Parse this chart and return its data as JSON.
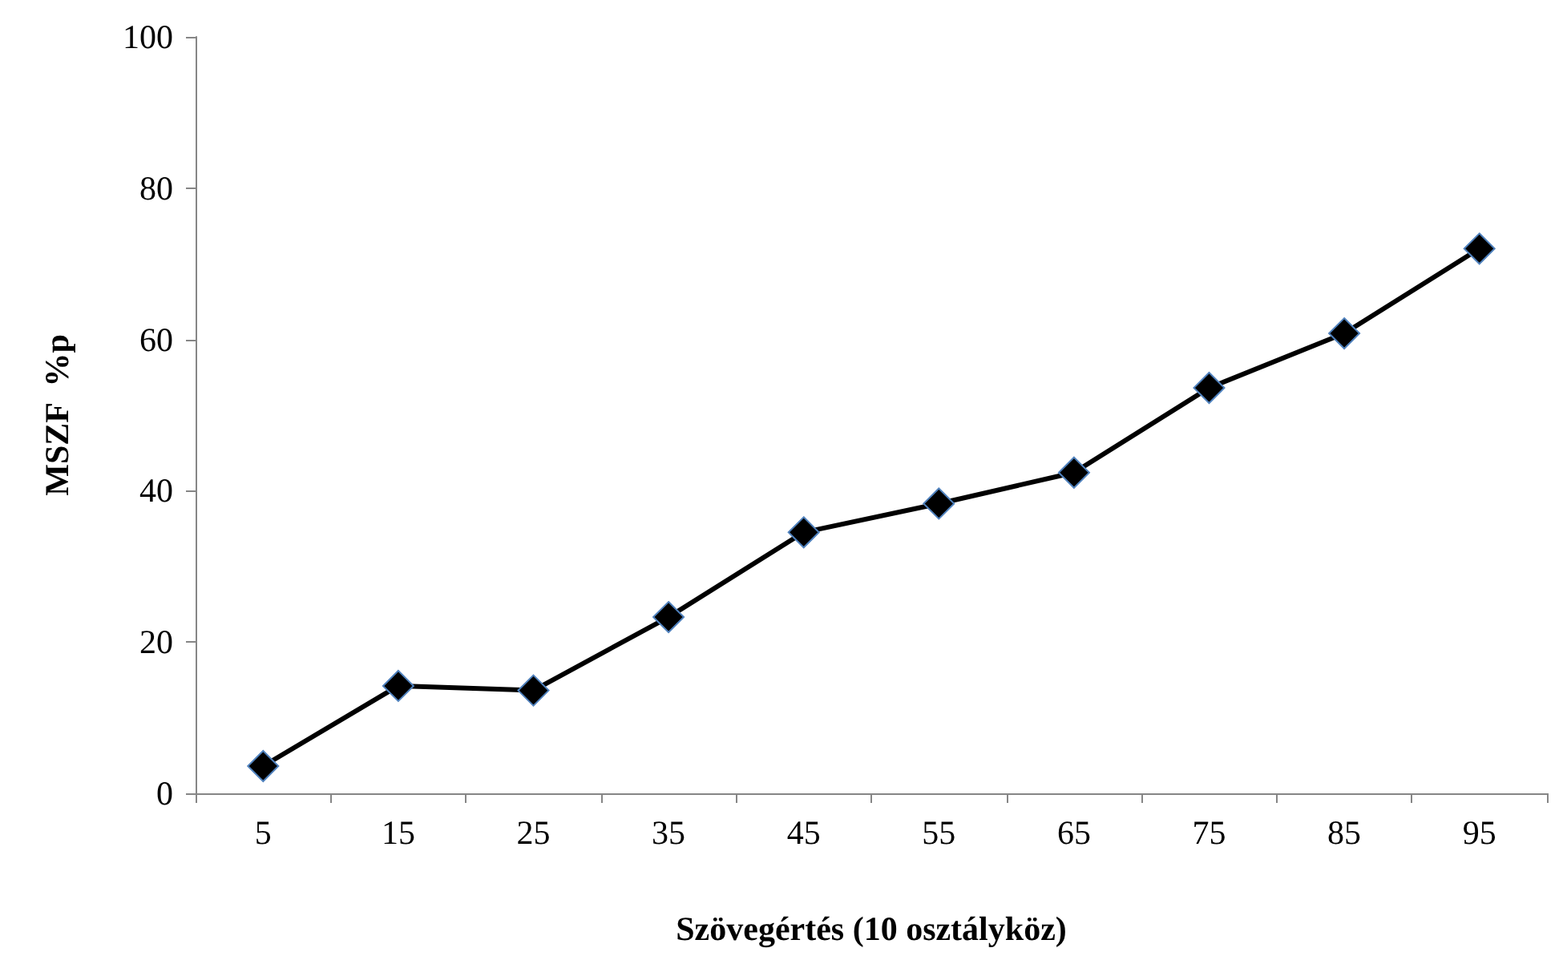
{
  "chart_data": {
    "type": "line",
    "xlabel": "Szövegértés (10 osztályköz)",
    "ylabel": "MSZF  %p",
    "categories": [
      "5",
      "15",
      "25",
      "35",
      "45",
      "55",
      "65",
      "75",
      "85",
      "95"
    ],
    "series": [
      {
        "color": "#000000",
        "values": [
          3.6,
          14.2,
          13.6,
          23.3,
          34.5,
          38.3,
          42.4,
          53.6,
          60.8,
          72.0
        ]
      }
    ],
    "ylim": [
      0,
      100
    ],
    "yticks": [
      0,
      20,
      40,
      60,
      80,
      100
    ],
    "grid": false,
    "marker": "diamond",
    "line_style": "solid"
  }
}
